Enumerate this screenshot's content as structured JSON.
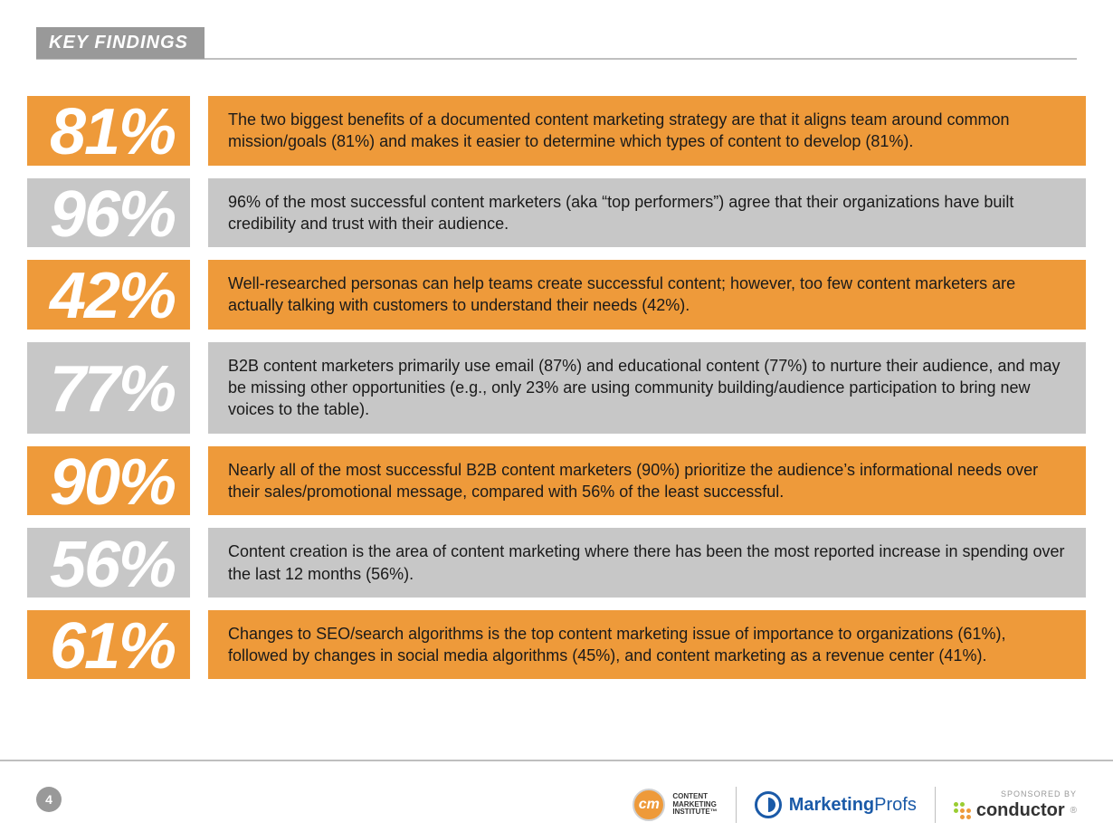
{
  "page": {
    "header_label": "KEY FINDINGS",
    "page_number": "4",
    "sponsored_label": "SPONSORED BY"
  },
  "colors": {
    "orange": "#ee9a3a",
    "gray": "#c7c7c7",
    "header_gray": "#999999",
    "rule_gray": "#bfbfbf",
    "text": "#1a1a1a",
    "mp_blue": "#1a5aa8"
  },
  "logos": {
    "cmi": {
      "mark": "cm",
      "line1": "CONTENT",
      "line2": "MARKETING",
      "line3": "INSTITUTE™"
    },
    "marketingprofs": {
      "mark": "◐",
      "text_bold": "Marketing",
      "text_reg": "Profs"
    },
    "conductor": {
      "text": "conductor"
    }
  },
  "findings": [
    {
      "stat": "81%",
      "stat_bg": "#ee9a3a",
      "desc_bg": "#ee9a3a",
      "desc": "The two biggest benefits of a documented content marketing strategy are that it aligns team around common mission/goals (81%) and makes it easier to determine which types of content to develop (81%)."
    },
    {
      "stat": "96%",
      "stat_bg": "#c7c7c7",
      "desc_bg": "#c7c7c7",
      "desc": "96% of the most successful content marketers (aka “top performers”) agree that their organizations have built credibility and trust with their audience."
    },
    {
      "stat": "42%",
      "stat_bg": "#ee9a3a",
      "desc_bg": "#ee9a3a",
      "desc": "Well-researched personas can help teams create successful content; however, too few content marketers are actually talking with customers to understand their needs (42%)."
    },
    {
      "stat": "77%",
      "stat_bg": "#c7c7c7",
      "desc_bg": "#c7c7c7",
      "desc": "B2B content marketers primarily use email (87%) and educational content (77%) to nurture their audience, and may be missing other opportunities (e.g., only 23% are using community building/audience participation to bring new voices to the table)."
    },
    {
      "stat": "90%",
      "stat_bg": "#ee9a3a",
      "desc_bg": "#ee9a3a",
      "desc": "Nearly all of the most successful B2B content marketers (90%) prioritize the audience’s informational needs over their sales/promotional message, compared with 56% of the least successful."
    },
    {
      "stat": "56%",
      "stat_bg": "#c7c7c7",
      "desc_bg": "#c7c7c7",
      "desc": "Content creation is the area of content marketing where there has been the most reported increase in spending over the last 12 months (56%)."
    },
    {
      "stat": "61%",
      "stat_bg": "#ee9a3a",
      "desc_bg": "#ee9a3a",
      "desc": "Changes to SEO/search algorithms is the top content marketing issue of importance to organizations (61%), followed by changes in social media algorithms (45%), and content marketing as a revenue center (41%)."
    }
  ]
}
